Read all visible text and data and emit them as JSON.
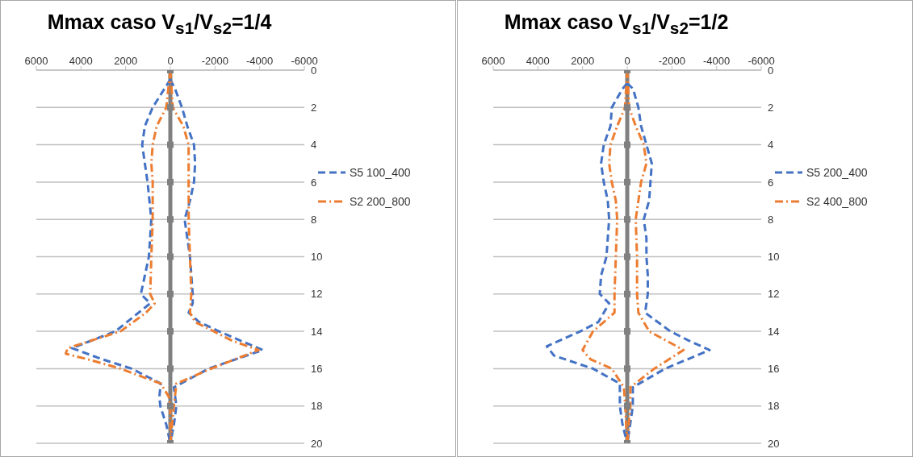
{
  "chart_data": [
    {
      "type": "line",
      "orientation": "horizontal",
      "title": "Mmax caso V$_{s1}$/V$_{s2}$=1/4",
      "xlim": [
        6000,
        -6000
      ],
      "xticks": [
        6000,
        4000,
        2000,
        0,
        -2000,
        -4000,
        -6000
      ],
      "ylim": [
        20,
        0
      ],
      "yticks": [
        0,
        2,
        4,
        6,
        8,
        10,
        12,
        14,
        16,
        18,
        20
      ],
      "grid": "y",
      "legend": "right",
      "series": [
        {
          "color": "#808080",
          "marker": "square",
          "line_style": "solid",
          "x": [
            0,
            2,
            4,
            6,
            8,
            10,
            12,
            14,
            16,
            18,
            20
          ],
          "values": [
            0,
            0,
            0,
            0,
            0,
            0,
            0,
            0,
            0,
            0,
            0
          ]
        },
        {
          "name": "S5 100_400",
          "color": "#4472c4",
          "marker": "none",
          "line_style": "dashed",
          "x": [
            0.5,
            2,
            3,
            4,
            5,
            6,
            8,
            10,
            11,
            12,
            12.5,
            14,
            14.9,
            15.5,
            16,
            16.8,
            17.5,
            18,
            19,
            20
          ],
          "values": [
            0,
            790,
            1140,
            1260,
            1140,
            1020,
            850,
            960,
            1140,
            1320,
            900,
            2460,
            4410,
            3040,
            1730,
            430,
            490,
            450,
            180,
            0
          ]
        },
        {
          "color": "#4472c4",
          "marker": "none",
          "line_style": "dashed",
          "x": [
            0.5,
            1,
            2,
            3,
            4,
            5,
            6,
            7,
            8,
            10,
            11,
            12,
            12.5,
            13,
            13.5,
            14,
            14.5,
            15,
            16,
            17,
            18,
            19,
            20
          ],
          "values": [
            0,
            -210,
            -520,
            -760,
            -1060,
            -1110,
            -1060,
            -880,
            -640,
            -880,
            -940,
            -1000,
            -1000,
            -820,
            -1290,
            -2180,
            -3140,
            -4140,
            -1710,
            -160,
            -270,
            -160,
            0
          ]
        },
        {
          "name": "S2 200_800",
          "color": "#ed7d31",
          "marker": "none",
          "line_style": "dotted",
          "x": [
            0,
            2,
            3,
            4,
            5,
            6,
            8,
            10,
            12,
            12.5,
            13,
            14,
            14.9,
            15.2,
            15.5,
            16,
            16.8,
            17.5,
            18,
            20
          ],
          "values": [
            0,
            180,
            610,
            790,
            850,
            790,
            790,
            850,
            900,
            700,
            1090,
            2230,
            4600,
            4680,
            3690,
            2230,
            430,
            70,
            0,
            0
          ]
        },
        {
          "color": "#ed7d31",
          "marker": "none",
          "line_style": "dotted",
          "x": [
            0,
            2,
            3,
            4,
            6,
            8,
            10,
            12,
            13,
            13.5,
            14,
            14.5,
            15,
            16,
            16.8,
            18,
            20
          ],
          "values": [
            0,
            -110,
            -580,
            -820,
            -820,
            -820,
            -880,
            -940,
            -880,
            -1110,
            -1950,
            -2760,
            -3950,
            -1830,
            -270,
            -160,
            0
          ]
        }
      ]
    },
    {
      "type": "line",
      "orientation": "horizontal",
      "title": "Mmax caso V$_{s1}$/V$_{s2}$=1/2",
      "xlim": [
        6000,
        -6000
      ],
      "xticks": [
        6000,
        4000,
        2000,
        0,
        -2000,
        -4000,
        -6000
      ],
      "ylim": [
        20,
        0
      ],
      "yticks": [
        0,
        2,
        4,
        6,
        8,
        10,
        12,
        14,
        16,
        18,
        20
      ],
      "grid": "y",
      "legend": "right",
      "series": [
        {
          "color": "#808080",
          "marker": "square",
          "line_style": "solid",
          "x": [
            0,
            2,
            4,
            6,
            8,
            10,
            12,
            14,
            16,
            18,
            20
          ],
          "values": [
            0,
            0,
            0,
            0,
            0,
            0,
            0,
            0,
            0,
            0,
            0
          ]
        },
        {
          "name": "S5 200_400",
          "color": "#4472c4",
          "marker": "none",
          "line_style": "dashed",
          "x": [
            0.7,
            1,
            2,
            3,
            4,
            5,
            6,
            7,
            8,
            10,
            11,
            12,
            12.5,
            13.5,
            14,
            14.8,
            15.3,
            16,
            16.8,
            17.5,
            18,
            19,
            20
          ],
          "values": [
            0,
            210,
            690,
            750,
            1050,
            1170,
            1050,
            870,
            810,
            930,
            1170,
            1230,
            810,
            1290,
            2100,
            3600,
            3280,
            1530,
            330,
            330,
            330,
            210,
            0
          ]
        },
        {
          "color": "#4472c4",
          "marker": "none",
          "line_style": "dashed",
          "x": [
            0.7,
            1,
            2,
            3,
            4,
            5,
            6,
            7,
            8,
            9,
            10,
            11,
            12,
            13,
            14,
            14.5,
            15,
            16,
            17,
            18,
            19,
            20
          ],
          "values": [
            0,
            -260,
            -500,
            -620,
            -860,
            -1100,
            -1040,
            -980,
            -740,
            -860,
            -860,
            -920,
            -920,
            -800,
            -1930,
            -2760,
            -3690,
            -1700,
            -250,
            -250,
            -130,
            0
          ]
        },
        {
          "name": "S2 400_800",
          "color": "#ed7d31",
          "marker": "none",
          "line_style": "dotted",
          "x": [
            0,
            2,
            3,
            4,
            5,
            6,
            7,
            8,
            10,
            12,
            13,
            14,
            15,
            15.5,
            16,
            17,
            18,
            20
          ],
          "values": [
            0,
            100,
            450,
            750,
            810,
            690,
            510,
            450,
            510,
            570,
            570,
            1530,
            2000,
            1640,
            690,
            150,
            90,
            0
          ]
        },
        {
          "color": "#ed7d31",
          "marker": "none",
          "line_style": "dotted",
          "x": [
            0,
            2,
            3,
            4,
            5,
            6,
            8,
            10,
            12,
            13,
            14,
            15,
            16,
            17,
            18,
            20
          ],
          "values": [
            0,
            -80,
            -380,
            -740,
            -860,
            -620,
            -380,
            -440,
            -440,
            -500,
            -980,
            -2520,
            -1210,
            -140,
            -140,
            0
          ]
        }
      ]
    }
  ]
}
